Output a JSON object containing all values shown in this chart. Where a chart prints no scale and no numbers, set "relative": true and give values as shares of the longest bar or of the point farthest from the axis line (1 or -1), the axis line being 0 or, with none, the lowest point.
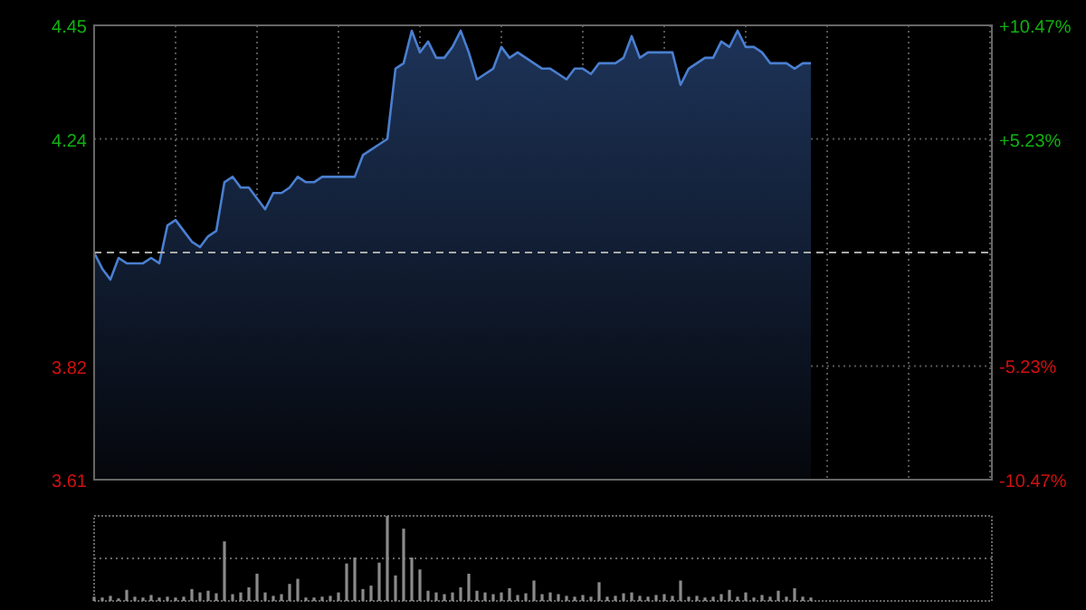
{
  "chart_data": [
    {
      "type": "area",
      "categories": [
        null,
        null,
        null,
        null,
        null,
        null,
        null,
        null,
        null,
        null,
        null,
        null,
        null,
        null,
        null,
        null,
        null,
        null,
        null,
        null,
        null,
        null,
        null,
        null,
        null,
        null,
        null,
        null,
        null,
        null,
        null,
        null,
        null,
        null,
        null,
        null,
        null,
        null,
        null,
        null,
        null,
        null,
        null,
        null,
        null,
        null,
        null,
        null,
        null,
        null,
        null,
        null,
        null,
        null,
        null,
        null,
        null,
        null,
        null,
        null,
        null,
        null,
        null,
        null,
        null,
        null,
        null,
        null,
        null,
        null,
        null,
        null,
        null,
        null,
        null,
        null,
        null,
        null,
        null,
        null,
        null,
        null,
        null,
        null,
        null,
        null,
        null,
        null,
        null
      ],
      "series": [
        {
          "color": "#4a7fd0",
          "values": [
            4.03,
            4.0,
            3.98,
            4.02,
            4.01,
            4.01,
            4.01,
            4.02,
            4.01,
            4.08,
            4.09,
            4.07,
            4.05,
            4.04,
            4.06,
            4.07,
            4.16,
            4.17,
            4.15,
            4.15,
            4.13,
            4.11,
            4.14,
            4.14,
            4.15,
            4.17,
            4.16,
            4.16,
            4.17,
            4.17,
            4.17,
            4.17,
            4.17,
            4.21,
            4.22,
            4.23,
            4.24,
            4.37,
            4.38,
            4.44,
            4.4,
            4.42,
            4.39,
            4.39,
            4.41,
            4.44,
            4.4,
            4.35,
            4.36,
            4.37,
            4.41,
            4.39,
            4.4,
            4.39,
            4.38,
            4.37,
            4.37,
            4.36,
            4.35,
            4.37,
            4.37,
            4.36,
            4.38,
            4.38,
            4.38,
            4.39,
            4.43,
            4.39,
            4.4,
            4.4,
            4.4,
            4.4,
            4.34,
            4.37,
            4.38,
            4.39,
            4.39,
            4.42,
            4.41,
            4.44,
            4.41,
            4.41,
            4.4,
            4.38,
            4.38,
            4.38,
            4.37,
            4.38,
            4.38
          ]
        }
      ],
      "ylim": [
        3.61,
        4.45
      ],
      "yticks": [
        3.61,
        3.82,
        4.24,
        4.45
      ],
      "y2lim": [
        -10.47,
        10.47
      ],
      "y2ticks": [
        {
          "value": -10.47,
          "label": "-10.47%"
        },
        {
          "value": -5.23,
          "label": "-5.23%"
        },
        {
          "value": 5.23,
          "label": "+5.23%"
        },
        {
          "value": 10.47,
          "label": "+10.47%"
        }
      ],
      "ref_lines": [
        {
          "axis": "y",
          "value": 4.03,
          "line_style": "dashed"
        }
      ],
      "grid": true,
      "tick_labels": "y"
    },
    {
      "type": "bar",
      "relative": true,
      "color": "#8a8a8a",
      "ref_lines": [
        {
          "axis": "y",
          "value": 0.5,
          "line_style": "dotted"
        }
      ],
      "categories": [
        null,
        null,
        null,
        null,
        null,
        null,
        null,
        null,
        null,
        null,
        null,
        null,
        null,
        null,
        null,
        null,
        null,
        null,
        null,
        null,
        null,
        null,
        null,
        null,
        null,
        null,
        null,
        null,
        null,
        null,
        null,
        null,
        null,
        null,
        null,
        null,
        null,
        null,
        null,
        null,
        null,
        null,
        null,
        null,
        null,
        null,
        null,
        null,
        null,
        null,
        null,
        null,
        null,
        null,
        null,
        null,
        null,
        null,
        null,
        null,
        null,
        null,
        null,
        null,
        null,
        null,
        null,
        null,
        null,
        null,
        null,
        null,
        null,
        null,
        null,
        null,
        null,
        null,
        null,
        null,
        null,
        null,
        null,
        null,
        null,
        null,
        null,
        null,
        null
      ],
      "values": [
        0.05,
        0.04,
        0.06,
        0.03,
        0.13,
        0.05,
        0.04,
        0.07,
        0.04,
        0.05,
        0.04,
        0.05,
        0.14,
        0.1,
        0.12,
        0.09,
        0.7,
        0.08,
        0.1,
        0.16,
        0.32,
        0.1,
        0.06,
        0.08,
        0.2,
        0.26,
        0.04,
        0.04,
        0.05,
        0.06,
        0.1,
        0.44,
        0.51,
        0.14,
        0.18,
        0.45,
        1.0,
        0.3,
        0.85,
        0.51,
        0.37,
        0.12,
        0.1,
        0.08,
        0.1,
        0.16,
        0.32,
        0.12,
        0.1,
        0.08,
        0.1,
        0.15,
        0.07,
        0.09,
        0.24,
        0.08,
        0.1,
        0.08,
        0.06,
        0.05,
        0.07,
        0.05,
        0.22,
        0.05,
        0.06,
        0.09,
        0.1,
        0.06,
        0.05,
        0.07,
        0.08,
        0.06,
        0.24,
        0.05,
        0.06,
        0.04,
        0.05,
        0.08,
        0.13,
        0.05,
        0.1,
        0.04,
        0.07,
        0.05,
        0.12,
        0.05,
        0.15,
        0.05,
        0.04
      ]
    }
  ]
}
